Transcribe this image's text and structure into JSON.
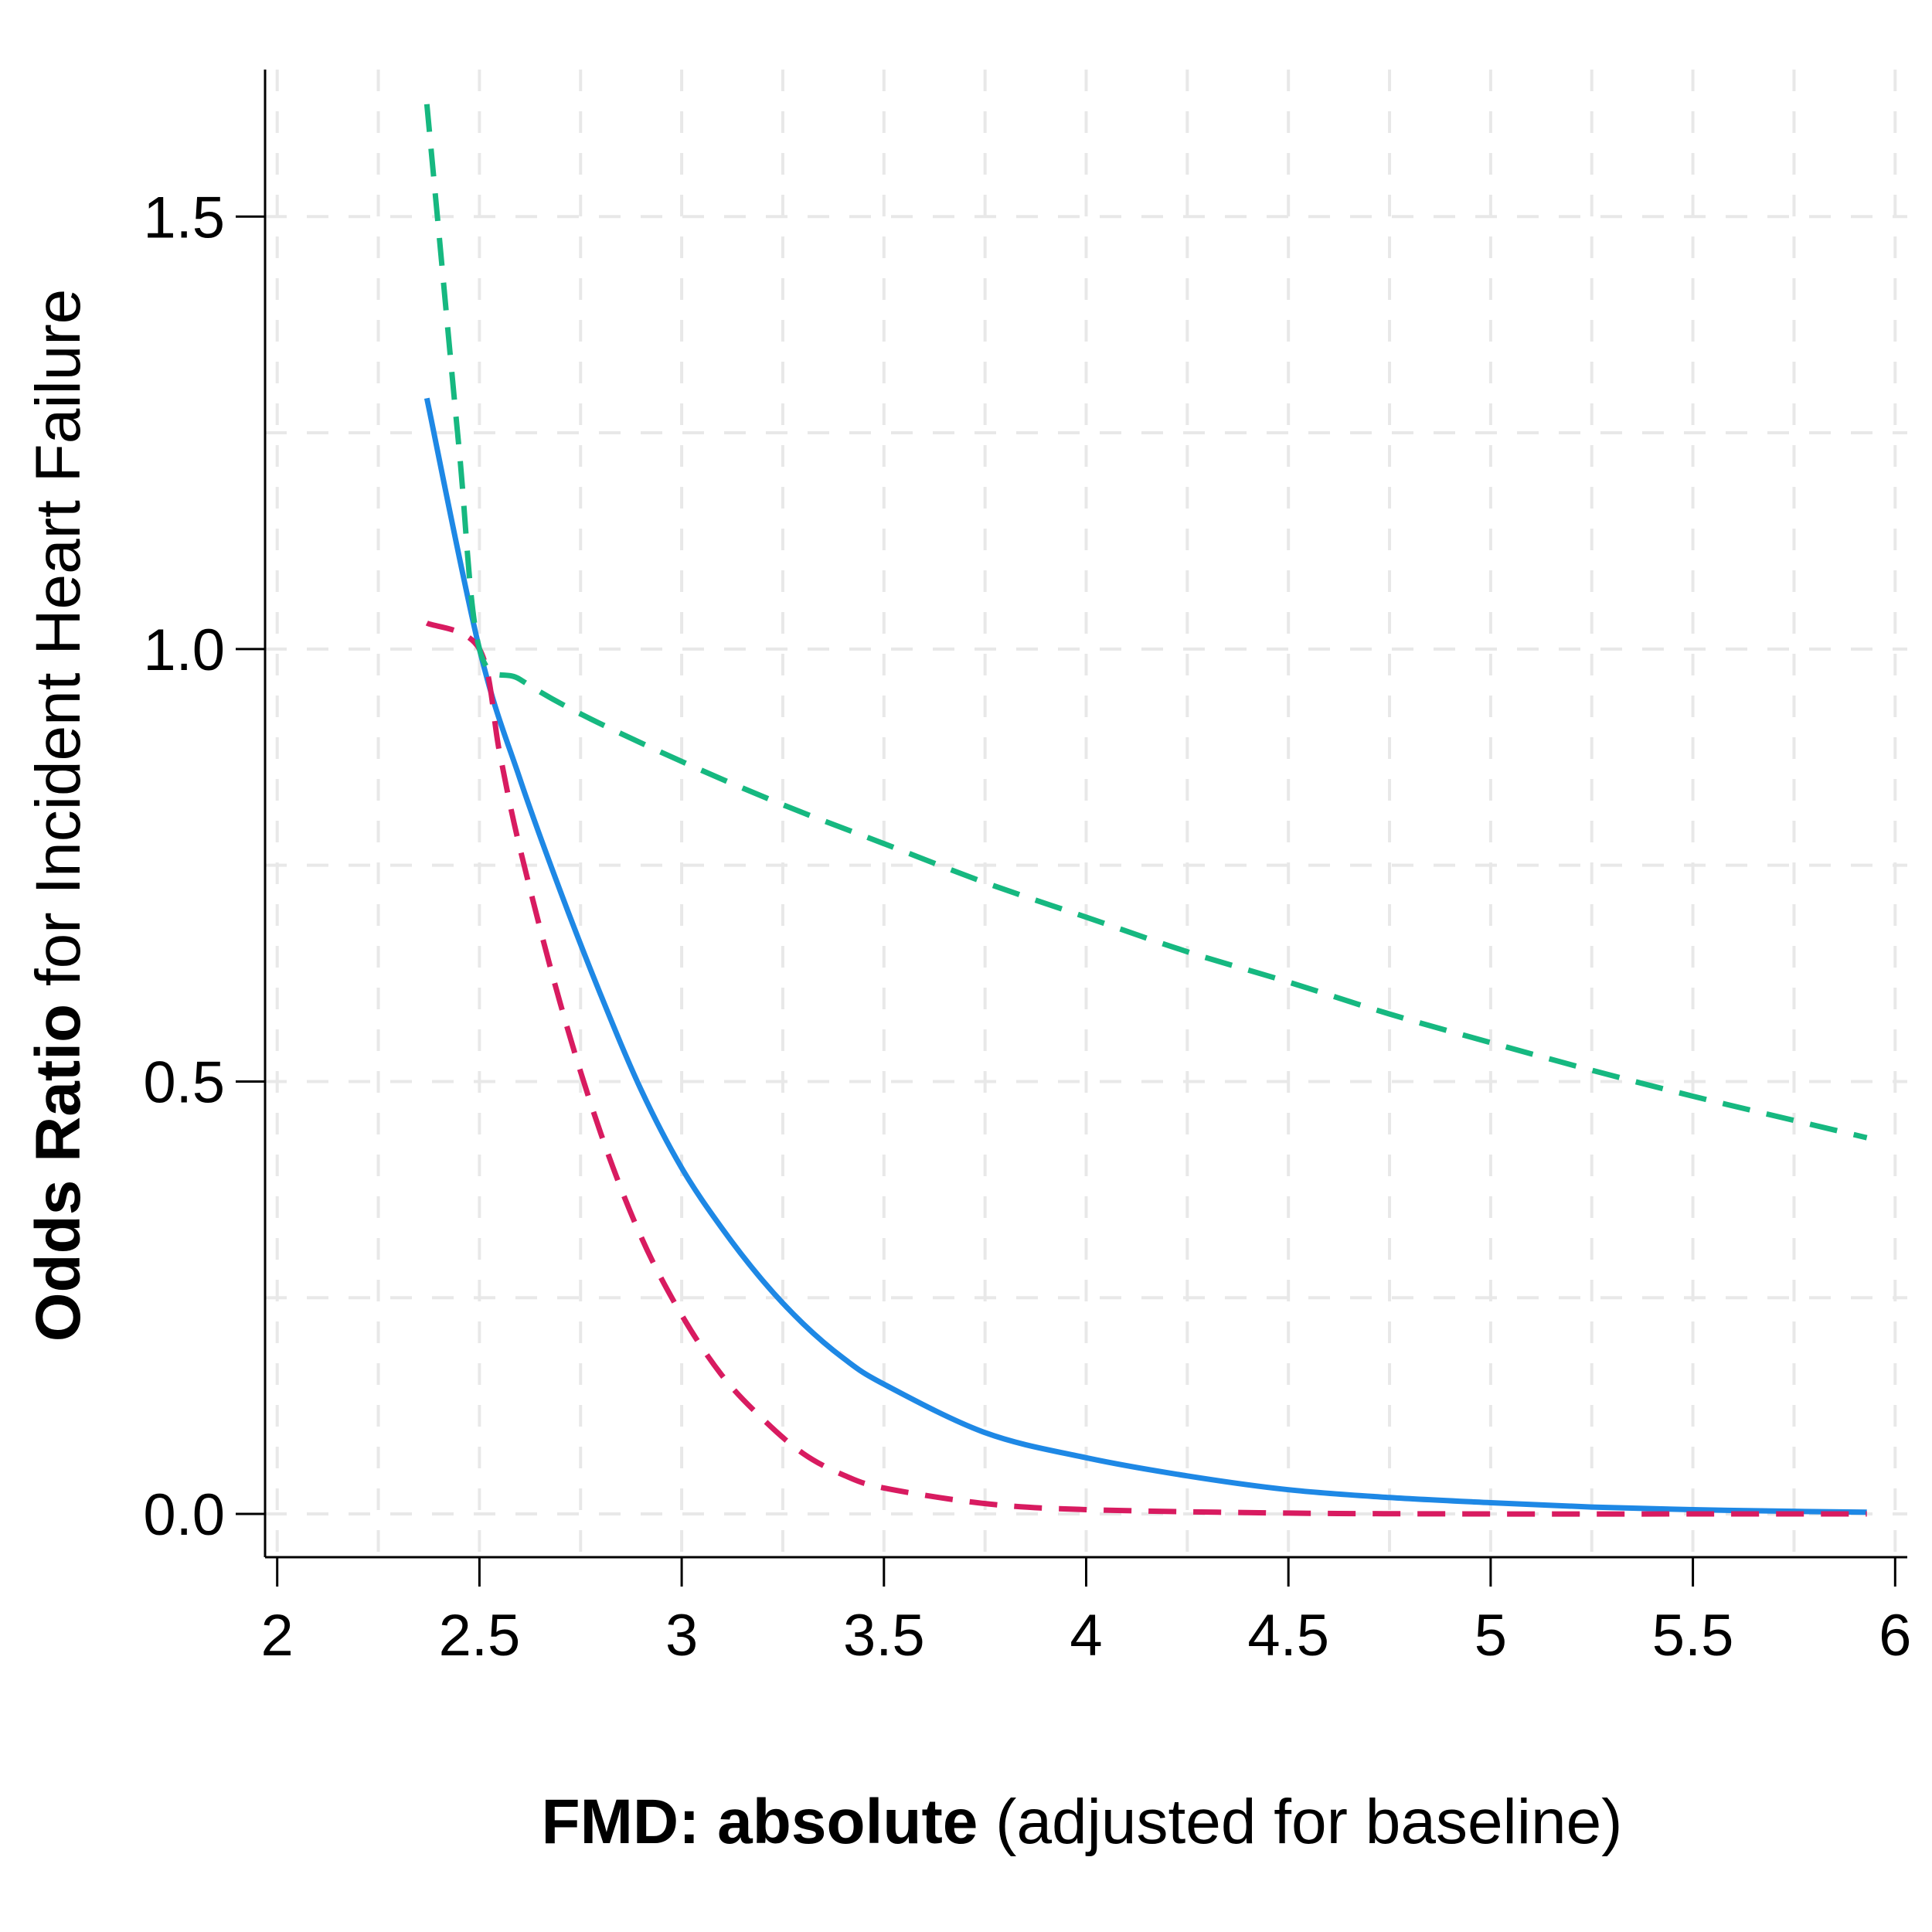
{
  "chart_data": {
    "type": "line",
    "xlabel_bold": "FMD: absolute",
    "xlabel_rest": " (adjusted for baseline)",
    "ylabel_bold": "Odds Ratio",
    "ylabel_rest": " for Incident Heart Failure",
    "xlim": [
      1.97,
      6.03
    ],
    "ylim": [
      -0.05,
      1.67
    ],
    "xticks": [
      2,
      2.5,
      3,
      3.5,
      4,
      4.5,
      5,
      5.5,
      6
    ],
    "xtick_labels": [
      "2",
      "2.5",
      "3",
      "3.5",
      "4",
      "4.5",
      "5",
      "5.5",
      "6"
    ],
    "yticks": [
      0.0,
      0.5,
      1.0,
      1.5
    ],
    "ytick_labels": [
      "0.0",
      "0.5",
      "1.0",
      "1.5"
    ],
    "grid": true,
    "series": [
      {
        "color": "#1E88E5",
        "dash": "solid",
        "x": [
          2.37,
          2.5,
          2.6,
          2.7,
          2.8,
          2.9,
          3.0,
          3.1,
          3.2,
          3.3,
          3.4,
          3.5,
          3.75,
          4.0,
          4.25,
          4.5,
          4.75,
          5.0,
          5.25,
          5.5,
          5.75,
          5.93
        ],
        "y": [
          1.29,
          1.0,
          0.85,
          0.72,
          0.6,
          0.49,
          0.4,
          0.33,
          0.27,
          0.22,
          0.18,
          0.15,
          0.094,
          0.065,
          0.044,
          0.028,
          0.019,
          0.013,
          0.008,
          0.005,
          0.003,
          0.002
        ]
      },
      {
        "color": "#D81B60",
        "dash": "dashed",
        "x": [
          2.37,
          2.5,
          2.55,
          2.6,
          2.7,
          2.8,
          2.9,
          3.0,
          3.1,
          3.2,
          3.3,
          3.4,
          3.5,
          3.75,
          4.0,
          4.5,
          5.0,
          5.5,
          5.93
        ],
        "y": [
          1.03,
          1.0,
          0.88,
          0.77,
          0.59,
          0.44,
          0.32,
          0.23,
          0.16,
          0.11,
          0.07,
          0.045,
          0.03,
          0.012,
          0.005,
          0.001,
          0.0,
          0.0,
          0.0
        ]
      },
      {
        "color": "#16B880",
        "dash": "dashed",
        "x": [
          2.37,
          2.4,
          2.45,
          2.5,
          2.6,
          2.75,
          3.0,
          3.25,
          3.5,
          3.75,
          4.0,
          4.25,
          4.5,
          4.75,
          5.0,
          5.25,
          5.5,
          5.75,
          5.93
        ],
        "y": [
          1.63,
          1.48,
          1.23,
          1.0,
          0.965,
          0.925,
          0.87,
          0.82,
          0.775,
          0.73,
          0.69,
          0.65,
          0.615,
          0.578,
          0.545,
          0.513,
          0.483,
          0.455,
          0.435
        ]
      }
    ]
  }
}
